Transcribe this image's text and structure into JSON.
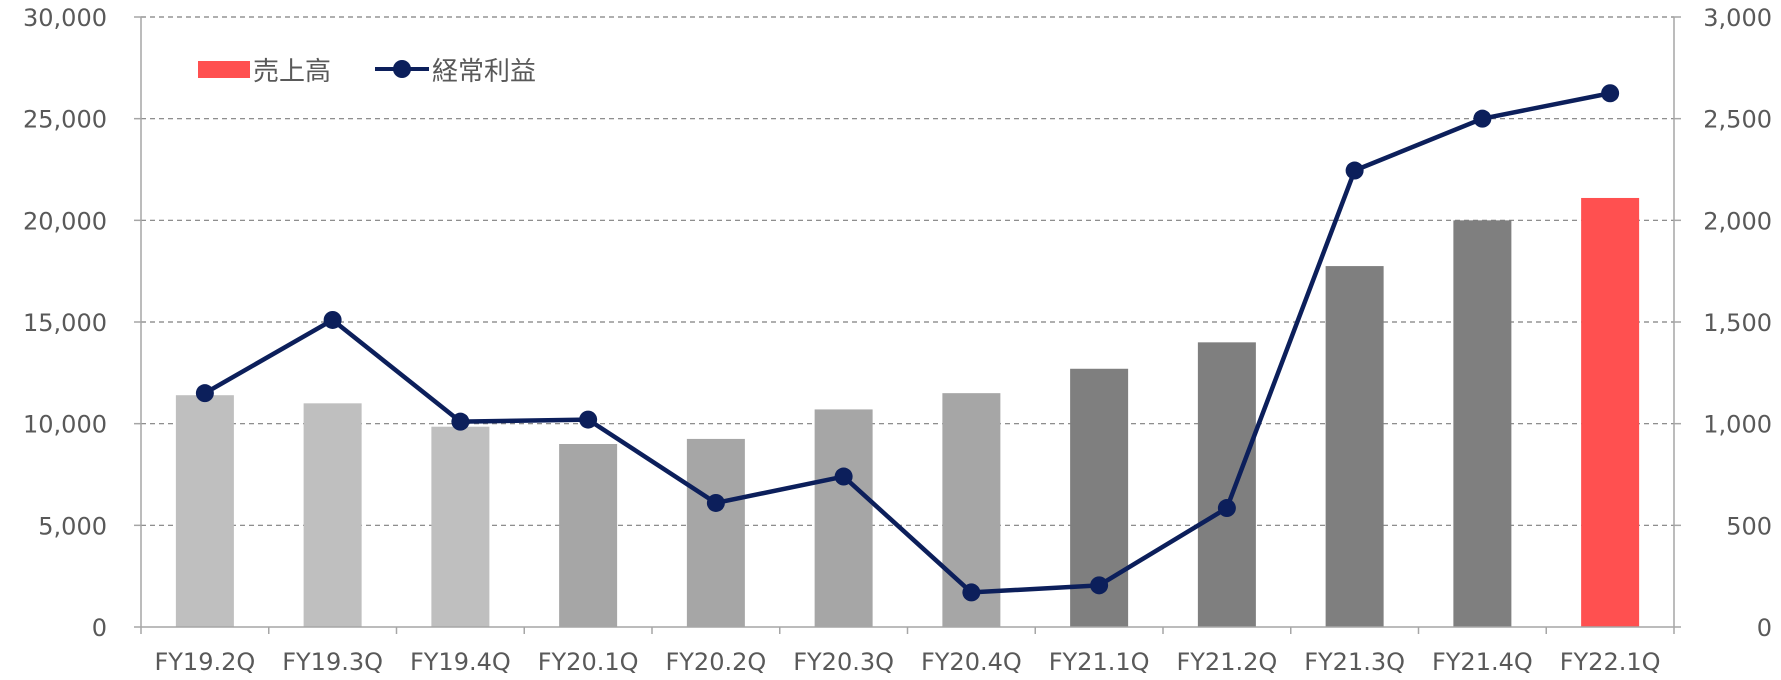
{
  "chart_data": {
    "type": "bar",
    "title": "",
    "xlabel": "",
    "ylabel": "",
    "categories": [
      "FY19.2Q",
      "FY19.3Q",
      "FY19.4Q",
      "FY20.1Q",
      "FY20.2Q",
      "FY20.3Q",
      "FY20.4Q",
      "FY21.1Q",
      "FY21.2Q",
      "FY21.3Q",
      "FY21.4Q",
      "FY22.1Q"
    ],
    "ylim": [
      0,
      30000
    ],
    "y2lim": [
      0,
      3000
    ],
    "y_ticks": [
      "0",
      "5,000",
      "10,000",
      "15,000",
      "20,000",
      "25,000",
      "30,000"
    ],
    "y2_ticks": [
      "0",
      "500",
      "1,000",
      "1,500",
      "2,000",
      "2,500",
      "3,000"
    ],
    "grid": true,
    "legend_position": "top-left",
    "series": [
      {
        "name": "売上高",
        "type": "bar",
        "axis": "left",
        "values": [
          11400,
          11000,
          9850,
          9000,
          9250,
          10700,
          11500,
          12700,
          14000,
          17750,
          20000,
          21100
        ],
        "colors": [
          "#bfbfbf",
          "#bfbfbf",
          "#bfbfbf",
          "#a6a6a6",
          "#a6a6a6",
          "#a6a6a6",
          "#a6a6a6",
          "#7f7f7f",
          "#7f7f7f",
          "#7f7f7f",
          "#7f7f7f",
          "#ff5050"
        ],
        "legend_color": "#ff5050"
      },
      {
        "name": "経常利益",
        "type": "line",
        "axis": "right",
        "values": [
          1150,
          1510,
          1010,
          1020,
          610,
          740,
          170,
          205,
          585,
          2245,
          2500,
          2625
        ],
        "color": "#0c1f5b"
      }
    ]
  }
}
